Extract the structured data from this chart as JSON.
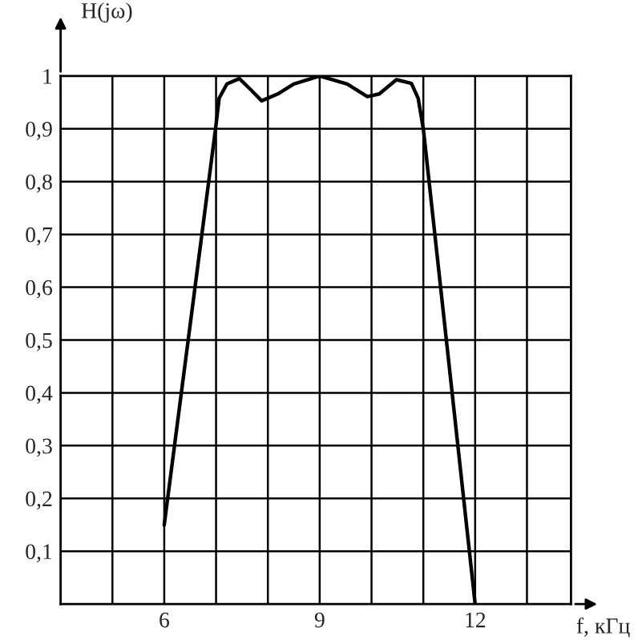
{
  "chart_data": {
    "type": "line",
    "xlabel": "f, кГц",
    "ylabel": "H(jω)",
    "series": [
      {
        "color": "#000000",
        "x": [
          6,
          6.99,
          7.06,
          7.21,
          7.45,
          7.67,
          7.88,
          8.19,
          8.5,
          9.0,
          9.53,
          9.92,
          10.15,
          10.48,
          10.77,
          10.9,
          11.0,
          12
        ],
        "values": [
          0.15,
          0.9,
          0.958,
          0.985,
          0.995,
          0.974,
          0.953,
          0.966,
          0.985,
          1.0,
          0.985,
          0.961,
          0.966,
          0.993,
          0.986,
          0.958,
          0.9,
          0
        ]
      }
    ],
    "xlim": [
      4,
      13.85
    ],
    "xticks": [
      {
        "value": 5,
        "label": null
      },
      6,
      {
        "value": 7,
        "label": null
      },
      {
        "value": 8,
        "label": null
      },
      9,
      {
        "value": 10,
        "label": null
      },
      {
        "value": 11,
        "label": null
      },
      12,
      {
        "value": 13,
        "label": null
      }
    ],
    "ylim": [
      0,
      1
    ],
    "yticks": [
      {
        "value": 0.1,
        "label": "0,1"
      },
      {
        "value": 0.2,
        "label": "0,2"
      },
      {
        "value": 0.3,
        "label": "0,3"
      },
      {
        "value": 0.4,
        "label": "0,4"
      },
      {
        "value": 0.5,
        "label": "0,5"
      },
      {
        "value": 0.6,
        "label": "0,6"
      },
      {
        "value": 0.7,
        "label": "0,7"
      },
      {
        "value": 0.8,
        "label": "0,8"
      },
      {
        "value": 0.9,
        "label": "0,9"
      },
      {
        "value": 1,
        "label": "1"
      }
    ],
    "grid": true,
    "marker": "none",
    "line_style": "solid"
  }
}
